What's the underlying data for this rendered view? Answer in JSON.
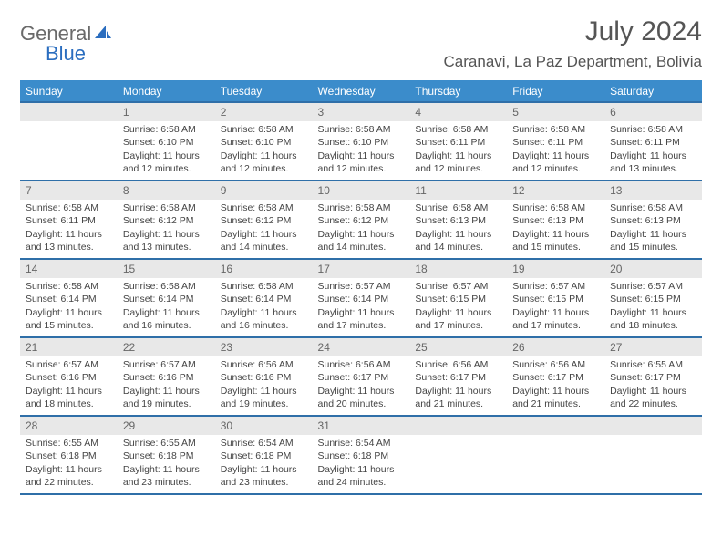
{
  "logo": {
    "part1": "General",
    "part2": "Blue"
  },
  "title": "July 2024",
  "location": "Caranavi, La Paz Department, Bolivia",
  "header_color": "#3b8ccb",
  "border_color": "#2f6fa8",
  "daynum_bg": "#e8e8e8",
  "weekdays": [
    "Sunday",
    "Monday",
    "Tuesday",
    "Wednesday",
    "Thursday",
    "Friday",
    "Saturday"
  ],
  "weeks": [
    [
      null,
      {
        "n": "1",
        "sr": "Sunrise: 6:58 AM",
        "ss": "Sunset: 6:10 PM",
        "d1": "Daylight: 11 hours",
        "d2": "and 12 minutes."
      },
      {
        "n": "2",
        "sr": "Sunrise: 6:58 AM",
        "ss": "Sunset: 6:10 PM",
        "d1": "Daylight: 11 hours",
        "d2": "and 12 minutes."
      },
      {
        "n": "3",
        "sr": "Sunrise: 6:58 AM",
        "ss": "Sunset: 6:10 PM",
        "d1": "Daylight: 11 hours",
        "d2": "and 12 minutes."
      },
      {
        "n": "4",
        "sr": "Sunrise: 6:58 AM",
        "ss": "Sunset: 6:11 PM",
        "d1": "Daylight: 11 hours",
        "d2": "and 12 minutes."
      },
      {
        "n": "5",
        "sr": "Sunrise: 6:58 AM",
        "ss": "Sunset: 6:11 PM",
        "d1": "Daylight: 11 hours",
        "d2": "and 12 minutes."
      },
      {
        "n": "6",
        "sr": "Sunrise: 6:58 AM",
        "ss": "Sunset: 6:11 PM",
        "d1": "Daylight: 11 hours",
        "d2": "and 13 minutes."
      }
    ],
    [
      {
        "n": "7",
        "sr": "Sunrise: 6:58 AM",
        "ss": "Sunset: 6:11 PM",
        "d1": "Daylight: 11 hours",
        "d2": "and 13 minutes."
      },
      {
        "n": "8",
        "sr": "Sunrise: 6:58 AM",
        "ss": "Sunset: 6:12 PM",
        "d1": "Daylight: 11 hours",
        "d2": "and 13 minutes."
      },
      {
        "n": "9",
        "sr": "Sunrise: 6:58 AM",
        "ss": "Sunset: 6:12 PM",
        "d1": "Daylight: 11 hours",
        "d2": "and 14 minutes."
      },
      {
        "n": "10",
        "sr": "Sunrise: 6:58 AM",
        "ss": "Sunset: 6:12 PM",
        "d1": "Daylight: 11 hours",
        "d2": "and 14 minutes."
      },
      {
        "n": "11",
        "sr": "Sunrise: 6:58 AM",
        "ss": "Sunset: 6:13 PM",
        "d1": "Daylight: 11 hours",
        "d2": "and 14 minutes."
      },
      {
        "n": "12",
        "sr": "Sunrise: 6:58 AM",
        "ss": "Sunset: 6:13 PM",
        "d1": "Daylight: 11 hours",
        "d2": "and 15 minutes."
      },
      {
        "n": "13",
        "sr": "Sunrise: 6:58 AM",
        "ss": "Sunset: 6:13 PM",
        "d1": "Daylight: 11 hours",
        "d2": "and 15 minutes."
      }
    ],
    [
      {
        "n": "14",
        "sr": "Sunrise: 6:58 AM",
        "ss": "Sunset: 6:14 PM",
        "d1": "Daylight: 11 hours",
        "d2": "and 15 minutes."
      },
      {
        "n": "15",
        "sr": "Sunrise: 6:58 AM",
        "ss": "Sunset: 6:14 PM",
        "d1": "Daylight: 11 hours",
        "d2": "and 16 minutes."
      },
      {
        "n": "16",
        "sr": "Sunrise: 6:58 AM",
        "ss": "Sunset: 6:14 PM",
        "d1": "Daylight: 11 hours",
        "d2": "and 16 minutes."
      },
      {
        "n": "17",
        "sr": "Sunrise: 6:57 AM",
        "ss": "Sunset: 6:14 PM",
        "d1": "Daylight: 11 hours",
        "d2": "and 17 minutes."
      },
      {
        "n": "18",
        "sr": "Sunrise: 6:57 AM",
        "ss": "Sunset: 6:15 PM",
        "d1": "Daylight: 11 hours",
        "d2": "and 17 minutes."
      },
      {
        "n": "19",
        "sr": "Sunrise: 6:57 AM",
        "ss": "Sunset: 6:15 PM",
        "d1": "Daylight: 11 hours",
        "d2": "and 17 minutes."
      },
      {
        "n": "20",
        "sr": "Sunrise: 6:57 AM",
        "ss": "Sunset: 6:15 PM",
        "d1": "Daylight: 11 hours",
        "d2": "and 18 minutes."
      }
    ],
    [
      {
        "n": "21",
        "sr": "Sunrise: 6:57 AM",
        "ss": "Sunset: 6:16 PM",
        "d1": "Daylight: 11 hours",
        "d2": "and 18 minutes."
      },
      {
        "n": "22",
        "sr": "Sunrise: 6:57 AM",
        "ss": "Sunset: 6:16 PM",
        "d1": "Daylight: 11 hours",
        "d2": "and 19 minutes."
      },
      {
        "n": "23",
        "sr": "Sunrise: 6:56 AM",
        "ss": "Sunset: 6:16 PM",
        "d1": "Daylight: 11 hours",
        "d2": "and 19 minutes."
      },
      {
        "n": "24",
        "sr": "Sunrise: 6:56 AM",
        "ss": "Sunset: 6:17 PM",
        "d1": "Daylight: 11 hours",
        "d2": "and 20 minutes."
      },
      {
        "n": "25",
        "sr": "Sunrise: 6:56 AM",
        "ss": "Sunset: 6:17 PM",
        "d1": "Daylight: 11 hours",
        "d2": "and 21 minutes."
      },
      {
        "n": "26",
        "sr": "Sunrise: 6:56 AM",
        "ss": "Sunset: 6:17 PM",
        "d1": "Daylight: 11 hours",
        "d2": "and 21 minutes."
      },
      {
        "n": "27",
        "sr": "Sunrise: 6:55 AM",
        "ss": "Sunset: 6:17 PM",
        "d1": "Daylight: 11 hours",
        "d2": "and 22 minutes."
      }
    ],
    [
      {
        "n": "28",
        "sr": "Sunrise: 6:55 AM",
        "ss": "Sunset: 6:18 PM",
        "d1": "Daylight: 11 hours",
        "d2": "and 22 minutes."
      },
      {
        "n": "29",
        "sr": "Sunrise: 6:55 AM",
        "ss": "Sunset: 6:18 PM",
        "d1": "Daylight: 11 hours",
        "d2": "and 23 minutes."
      },
      {
        "n": "30",
        "sr": "Sunrise: 6:54 AM",
        "ss": "Sunset: 6:18 PM",
        "d1": "Daylight: 11 hours",
        "d2": "and 23 minutes."
      },
      {
        "n": "31",
        "sr": "Sunrise: 6:54 AM",
        "ss": "Sunset: 6:18 PM",
        "d1": "Daylight: 11 hours",
        "d2": "and 24 minutes."
      },
      null,
      null,
      null
    ]
  ]
}
